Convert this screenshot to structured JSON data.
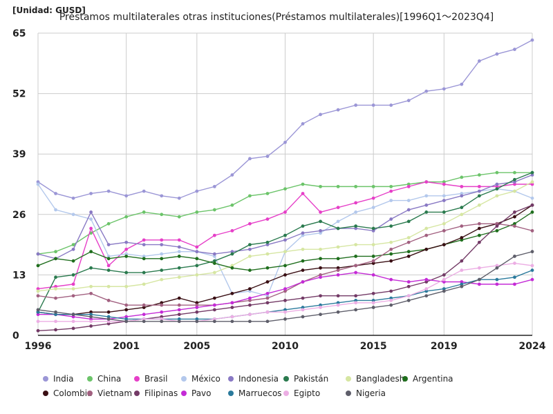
{
  "chart_data": {
    "type": "line",
    "unit_label": "[Unidad: GUSD]",
    "title": "Préstamos multilaterales otras instituciones(Préstamos multilaterales)[1996Q1～2023Q4]",
    "xlabel": "",
    "ylabel": "",
    "xlim": [
      1996,
      2024
    ],
    "ylim": [
      0,
      65
    ],
    "x_ticks": [
      1996,
      2001,
      2005,
      2010,
      2015,
      2019,
      2024
    ],
    "y_ticks": [
      0,
      13,
      26,
      39,
      52,
      65
    ],
    "grid": true,
    "legend_position": "bottom",
    "x": [
      1996,
      1997,
      1998,
      1999,
      2000,
      2001,
      2002,
      2003,
      2004,
      2005,
      2006,
      2007,
      2008,
      2009,
      2010,
      2011,
      2012,
      2013,
      2014,
      2015,
      2016,
      2017,
      2018,
      2019,
      2020,
      2021,
      2022,
      2023,
      2024
    ],
    "series": [
      {
        "name": "India",
        "color": "#9b96d6",
        "values": [
          33,
          30.5,
          29.5,
          30.5,
          31,
          30,
          31,
          30,
          29.5,
          31,
          32,
          34.5,
          38,
          38.5,
          41.5,
          45.5,
          47.5,
          48.5,
          49.5,
          49.5,
          49.5,
          50.5,
          52.5,
          53,
          54,
          59,
          60.5,
          61.5,
          63.5
        ]
      },
      {
        "name": "China",
        "color": "#6cc46a",
        "values": [
          17.5,
          18,
          19.5,
          22,
          24,
          25.5,
          26.5,
          26,
          25.5,
          26.5,
          27,
          28,
          30,
          30.5,
          31.5,
          32.5,
          32,
          32,
          32,
          32,
          32,
          32.5,
          33,
          33,
          34,
          34.5,
          35,
          35,
          35
        ]
      },
      {
        "name": "Brasil",
        "color": "#e63fc8",
        "values": [
          10,
          10.5,
          11,
          23,
          15,
          18.5,
          20.5,
          20.5,
          20.5,
          19,
          21.5,
          22.5,
          24,
          25,
          26.5,
          30.5,
          26.5,
          27.5,
          28.5,
          29.5,
          31,
          32,
          33,
          32.5,
          32,
          32,
          32,
          32.5,
          32.5
        ]
      },
      {
        "name": "México",
        "color": "#b3c8ec",
        "values": [
          32.5,
          27,
          26,
          25,
          17,
          17.5,
          17,
          17.5,
          18,
          18,
          17,
          9,
          9.5,
          8.5,
          18,
          21.5,
          22,
          24.5,
          26.5,
          27.5,
          29,
          29,
          30,
          30,
          30.5,
          31,
          31.5,
          31,
          29.5
        ]
      },
      {
        "name": "Indonesia",
        "color": "#8979c4",
        "values": [
          17.5,
          16.5,
          18.5,
          26.5,
          19.5,
          20,
          19.5,
          19.5,
          19,
          18,
          17.5,
          18,
          18.5,
          19.5,
          20.5,
          22,
          22.5,
          23,
          23,
          22.5,
          25,
          27,
          28,
          29,
          30,
          31,
          32.5,
          33,
          34.5
        ]
      },
      {
        "name": "Pakistán",
        "color": "#2a7a4e",
        "values": [
          5,
          12.5,
          13,
          14.5,
          14,
          13.5,
          13.5,
          14,
          14.5,
          15,
          16,
          17.5,
          19.5,
          20,
          21.5,
          23.5,
          24.5,
          23,
          23.5,
          23,
          23.5,
          24.5,
          26.5,
          26.5,
          27.5,
          30,
          31.5,
          33.5,
          35
        ]
      },
      {
        "name": "Bangladesh",
        "color": "#d6e6a2",
        "values": [
          9.5,
          10,
          10,
          10.5,
          10.5,
          10.5,
          11,
          12,
          12.5,
          13,
          13.5,
          15,
          17,
          17.5,
          18,
          18.5,
          18.5,
          19,
          19.5,
          19.5,
          20,
          21,
          23,
          24,
          26,
          28,
          30,
          31,
          33
        ]
      },
      {
        "name": "Argentina",
        "color": "#1f6e1d",
        "values": [
          15,
          16.5,
          16,
          18,
          16.5,
          17,
          16.5,
          16.5,
          17,
          16.5,
          15.5,
          14.5,
          14,
          14.5,
          15,
          16,
          16.5,
          16.5,
          17,
          17,
          17.5,
          18,
          18.5,
          19.5,
          20.5,
          21.5,
          22.5,
          24,
          26.5
        ]
      },
      {
        "name": "Colombia",
        "color": "#3a0f14",
        "values": [
          5,
          4.5,
          4.5,
          5,
          5,
          5.5,
          6,
          7,
          8,
          7,
          8,
          9,
          10,
          11.5,
          13,
          14,
          14.5,
          14.5,
          15,
          15.5,
          16,
          17,
          18.5,
          19.5,
          21,
          23,
          24,
          25.5,
          28
        ]
      },
      {
        "name": "Vietnam",
        "color": "#a26080",
        "values": [
          8.5,
          8,
          8.5,
          9,
          7.5,
          6.5,
          6.5,
          6.5,
          6.5,
          6.5,
          6.5,
          7,
          7.5,
          8,
          9.5,
          11.5,
          13,
          14,
          15,
          16,
          18.5,
          20,
          21.5,
          22.5,
          23.5,
          24,
          24,
          23.5,
          22.5
        ]
      },
      {
        "name": "Filipinas",
        "color": "#733a66",
        "values": [
          1,
          1.2,
          1.5,
          2,
          2.5,
          3,
          3.5,
          4,
          4.5,
          5,
          5.5,
          6,
          6.5,
          7,
          7.5,
          8,
          8.5,
          8.5,
          8.5,
          9,
          9.5,
          10.5,
          11.5,
          13,
          16,
          20,
          23.5,
          26.5,
          28
        ]
      },
      {
        "name": "Pavo",
        "color": "#c42bd6",
        "values": [
          4.5,
          4.5,
          4,
          3.5,
          3.5,
          4,
          4.5,
          5,
          5.5,
          6,
          6.5,
          7,
          8,
          9,
          10,
          11.5,
          12.5,
          13,
          13.5,
          13,
          12,
          11.5,
          12,
          11.5,
          11.5,
          11,
          11,
          11,
          12
        ]
      },
      {
        "name": "Marruecos",
        "color": "#2a7a9c",
        "values": [
          5,
          4.5,
          4.5,
          4.5,
          4,
          3.5,
          3.5,
          3.5,
          3.5,
          3.5,
          3.5,
          4,
          4.5,
          5,
          5.5,
          6,
          6.5,
          7,
          7.5,
          7.5,
          8,
          8.5,
          9.5,
          10,
          11,
          12,
          12,
          12.5,
          14
        ]
      },
      {
        "name": "Egipto",
        "color": "#ecaee4",
        "values": [
          3,
          3,
          3,
          3,
          3,
          3,
          3.5,
          3.5,
          3,
          3,
          3.5,
          4,
          4.5,
          5,
          5,
          5.5,
          6,
          6.5,
          7,
          7,
          7.5,
          8.5,
          10,
          12,
          14,
          14.5,
          15,
          15.5,
          15
        ]
      },
      {
        "name": "Nigeria",
        "color": "#5e5e6a",
        "values": [
          5.5,
          5,
          4.5,
          4,
          3.5,
          3,
          3,
          3,
          3,
          3,
          3,
          3,
          3,
          3,
          3.5,
          4,
          4.5,
          5,
          5.5,
          6,
          6.5,
          7.5,
          8.5,
          9.5,
          10.5,
          12,
          14.5,
          17,
          18
        ]
      }
    ]
  }
}
